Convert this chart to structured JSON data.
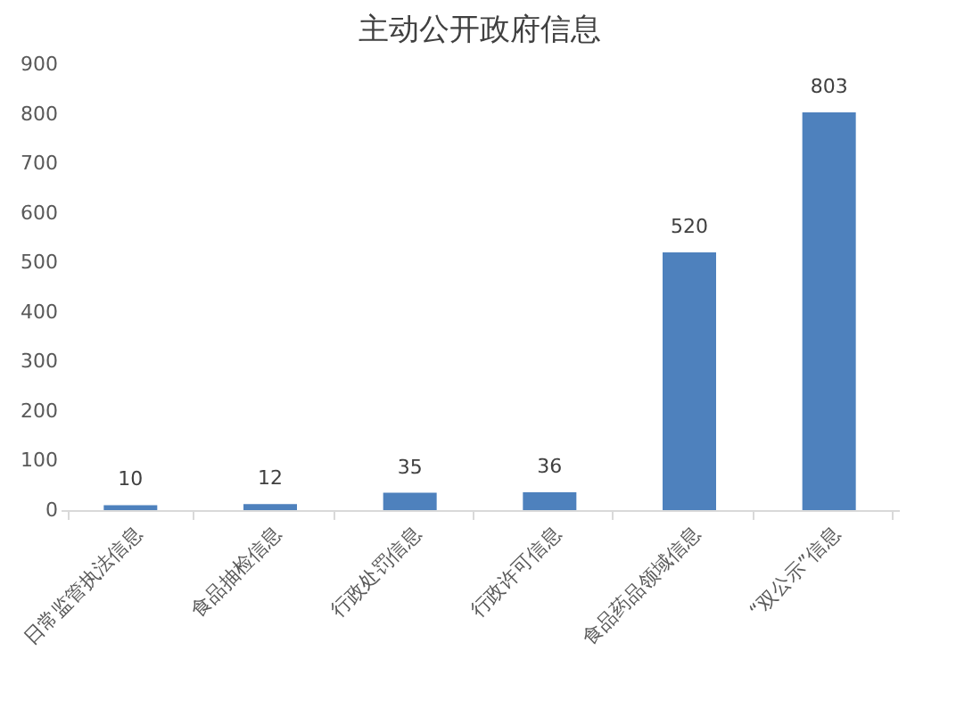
{
  "chart_data": {
    "type": "bar",
    "title": "主动公开政府信息",
    "categories": [
      "日常监管执法信息",
      "食品抽检信息",
      "行政处罚信息",
      "行政许可信息",
      "食品药品领域信息",
      "“双公示”信息"
    ],
    "values": [
      10,
      12,
      35,
      36,
      520,
      803
    ],
    "color": "#4e81bd",
    "ylim": [
      0,
      900
    ],
    "yticks": [
      0,
      100,
      200,
      300,
      400,
      500,
      600,
      700,
      800,
      900
    ],
    "grid": false,
    "data_labels": true
  }
}
